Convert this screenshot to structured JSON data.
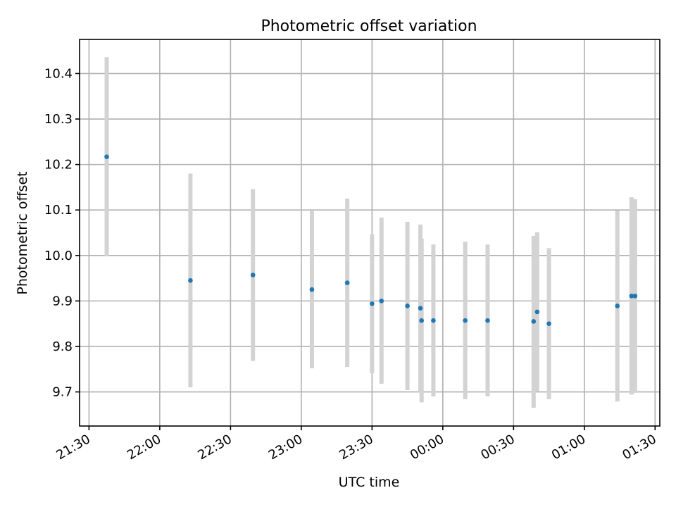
{
  "chart_data": {
    "type": "scatter",
    "title": "Photometric offset variation",
    "xlabel": "UTC time",
    "ylabel": "Photometric offset",
    "x_start_date": "2000-01-01",
    "x_ticks": [
      "21:30",
      "22:00",
      "22:30",
      "23:00",
      "23:30",
      "00:00",
      "00:30",
      "01:00",
      "01:30"
    ],
    "xlim": [
      "21:26",
      "01:32"
    ],
    "y_ticks": [
      "9.7",
      "9.8",
      "9.9",
      "10.0",
      "10.1",
      "10.2",
      "10.3",
      "10.4"
    ],
    "ylim": [
      9.625,
      10.475
    ],
    "grid": true,
    "colors": {
      "marker": "#1f77b4",
      "errorbar": "#d3d3d3",
      "grid": "#b0b0b0"
    },
    "series": [
      {
        "points": [
          {
            "x": "21:37.5",
            "y": 10.217,
            "ylow": 9.998,
            "yhigh": 10.436
          },
          {
            "x": "22:13",
            "y": 9.945,
            "ylow": 9.71,
            "yhigh": 10.18
          },
          {
            "x": "22:39.5",
            "y": 9.957,
            "ylow": 9.768,
            "yhigh": 10.146
          },
          {
            "x": "23:04.5",
            "y": 9.925,
            "ylow": 9.752,
            "yhigh": 10.098
          },
          {
            "x": "23:19.5",
            "y": 9.94,
            "ylow": 9.755,
            "yhigh": 10.125
          },
          {
            "x": "23:30",
            "y": 9.894,
            "ylow": 9.741,
            "yhigh": 10.047
          },
          {
            "x": "23:34",
            "y": 9.9,
            "ylow": 9.718,
            "yhigh": 10.083
          },
          {
            "x": "23:45",
            "y": 9.889,
            "ylow": 9.704,
            "yhigh": 10.074
          },
          {
            "x": "23:50.5",
            "y": 9.884,
            "ylow": 9.7,
            "yhigh": 10.068
          },
          {
            "x": "23:51",
            "y": 9.857,
            "ylow": 9.677,
            "yhigh": 10.037
          },
          {
            "x": "23:56",
            "y": 9.857,
            "ylow": 9.69,
            "yhigh": 10.024
          },
          {
            "x": "00:09.5",
            "y": 9.857,
            "ylow": 9.684,
            "yhigh": 10.03
          },
          {
            "x": "00:19",
            "y": 9.857,
            "ylow": 9.69,
            "yhigh": 10.024
          },
          {
            "x": "00:38.5",
            "y": 9.855,
            "ylow": 9.665,
            "yhigh": 10.043
          },
          {
            "x": "00:40",
            "y": 9.876,
            "ylow": 9.701,
            "yhigh": 10.051
          },
          {
            "x": "00:45",
            "y": 9.85,
            "ylow": 9.684,
            "yhigh": 10.016
          },
          {
            "x": "01:14",
            "y": 9.889,
            "ylow": 9.679,
            "yhigh": 10.099
          },
          {
            "x": "01:20",
            "y": 9.911,
            "ylow": 9.694,
            "yhigh": 10.128
          },
          {
            "x": "01:21.5",
            "y": 9.911,
            "ylow": 9.698,
            "yhigh": 10.124
          }
        ]
      }
    ]
  }
}
